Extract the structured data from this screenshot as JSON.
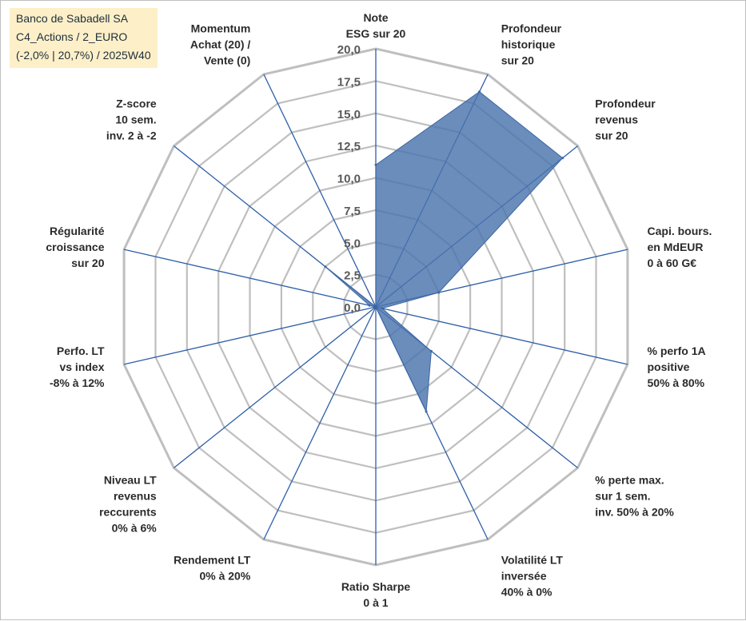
{
  "title_box": {
    "line1": "Banco de Sabadell SA",
    "line2": "C4_Actions / 2_EURO",
    "line3": "(-2,0% | 20,7%) / 2025W40"
  },
  "colors": {
    "grid": "#bfbfbf",
    "spoke": "#2e5fa8",
    "fill": "#4a74ad",
    "fill_stroke": "#3d67a3",
    "title_bg": "#fdf0c8"
  },
  "chart_data": {
    "type": "radar",
    "range": [
      0,
      20
    ],
    "tick_labels": [
      "0,0",
      "2,5",
      "5,0",
      "7,5",
      "10,0",
      "12,5",
      "15,0",
      "17,5",
      "20,0"
    ],
    "axes": [
      [
        "Note",
        "ESG sur 20"
      ],
      [
        "Profondeur",
        "historique",
        "sur 20"
      ],
      [
        "Profondeur",
        "revenus",
        "sur 20"
      ],
      [
        "Capi. bours.",
        "en MdEUR",
        "0 à 60 G€"
      ],
      [
        "% perfo 1A",
        "positive",
        "50% à 80%"
      ],
      [
        "% perte max.",
        "sur 1 sem.",
        "inv. 50% à 20%"
      ],
      [
        "Volatilité LT",
        "inversée",
        "40% à 0%"
      ],
      [
        "Ratio Sharpe",
        "0 à 1"
      ],
      [
        "Rendement LT",
        "0% à 20%"
      ],
      [
        "Niveau LT",
        "revenus",
        "reccurents",
        "0% à 6%"
      ],
      [
        "Perfo. LT",
        "vs index",
        "-8% à 12%"
      ],
      [
        "Régularité",
        "croissance",
        "sur 20"
      ],
      [
        "Z-score",
        "10 sem.",
        "inv. 2 à -2"
      ],
      [
        "Momentum",
        "Achat (20) /",
        "Vente (0)"
      ]
    ],
    "values": [
      11,
      18.5,
      18.5,
      5,
      0.5,
      5.5,
      9,
      0,
      0,
      0,
      0,
      0.5,
      5,
      0
    ],
    "grid": true,
    "legend": "none"
  }
}
